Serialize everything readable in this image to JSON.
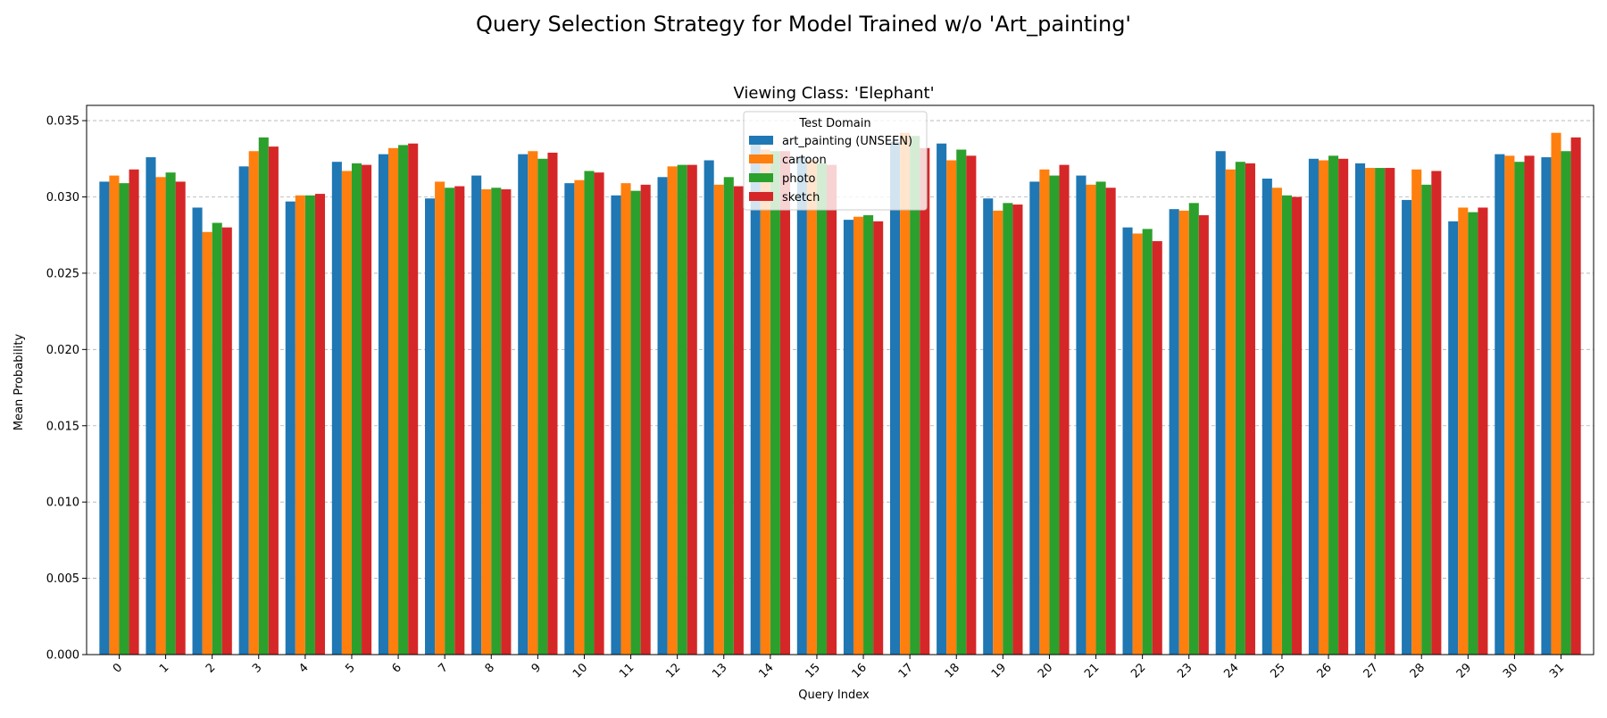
{
  "figure": {
    "suptitle": "Query Selection Strategy for Model Trained w/o 'Art_painting'"
  },
  "chart_data": {
    "type": "bar",
    "title": "Viewing Class: 'Elephant'",
    "xlabel": "Query Index",
    "ylabel": "Mean Probability",
    "ylim": [
      0,
      0.036
    ],
    "yticks": [
      "0.000",
      "0.005",
      "0.010",
      "0.015",
      "0.020",
      "0.025",
      "0.030",
      "0.035"
    ],
    "grid": "y-dashed",
    "legend": {
      "title": "Test Domain",
      "placement": "top-center"
    },
    "categories": [
      "0",
      "1",
      "2",
      "3",
      "4",
      "5",
      "6",
      "7",
      "8",
      "9",
      "10",
      "11",
      "12",
      "13",
      "14",
      "15",
      "16",
      "17",
      "18",
      "19",
      "20",
      "21",
      "22",
      "23",
      "24",
      "25",
      "26",
      "27",
      "28",
      "29",
      "30",
      "31"
    ],
    "series": [
      {
        "name": "art_painting (UNSEEN)",
        "color": "#1f77b4",
        "values": [
          0.031,
          0.0326,
          0.0293,
          0.032,
          0.0297,
          0.0323,
          0.0328,
          0.0299,
          0.0314,
          0.0328,
          0.0309,
          0.0301,
          0.0313,
          0.0324,
          0.0338,
          0.0326,
          0.0285,
          0.0336,
          0.0335,
          0.0299,
          0.031,
          0.0314,
          0.028,
          0.0292,
          0.033,
          0.0312,
          0.0325,
          0.0322,
          0.0298,
          0.0284,
          0.0328,
          0.0326
        ]
      },
      {
        "name": "cartoon",
        "color": "#ff7f0e",
        "values": [
          0.0314,
          0.0313,
          0.0277,
          0.033,
          0.0301,
          0.0317,
          0.0332,
          0.031,
          0.0305,
          0.033,
          0.0311,
          0.0309,
          0.032,
          0.0308,
          0.0331,
          0.0324,
          0.0287,
          0.0342,
          0.0324,
          0.0291,
          0.0318,
          0.0308,
          0.0276,
          0.0291,
          0.0318,
          0.0306,
          0.0324,
          0.0319,
          0.0318,
          0.0293,
          0.0327,
          0.0342
        ]
      },
      {
        "name": "photo",
        "color": "#2ca02c",
        "values": [
          0.0309,
          0.0316,
          0.0283,
          0.0339,
          0.0301,
          0.0322,
          0.0334,
          0.0306,
          0.0306,
          0.0325,
          0.0317,
          0.0304,
          0.0321,
          0.0313,
          0.033,
          0.0322,
          0.0288,
          0.034,
          0.0331,
          0.0296,
          0.0314,
          0.031,
          0.0279,
          0.0296,
          0.0323,
          0.0301,
          0.0327,
          0.0319,
          0.0308,
          0.029,
          0.0323,
          0.033
        ]
      },
      {
        "name": "sketch",
        "color": "#d62728",
        "values": [
          0.0318,
          0.031,
          0.028,
          0.0333,
          0.0302,
          0.0321,
          0.0335,
          0.0307,
          0.0305,
          0.0329,
          0.0316,
          0.0308,
          0.0321,
          0.0307,
          0.033,
          0.0321,
          0.0284,
          0.0332,
          0.0327,
          0.0295,
          0.0321,
          0.0306,
          0.0271,
          0.0288,
          0.0322,
          0.03,
          0.0325,
          0.0319,
          0.0317,
          0.0293,
          0.0327,
          0.0339
        ]
      }
    ]
  }
}
